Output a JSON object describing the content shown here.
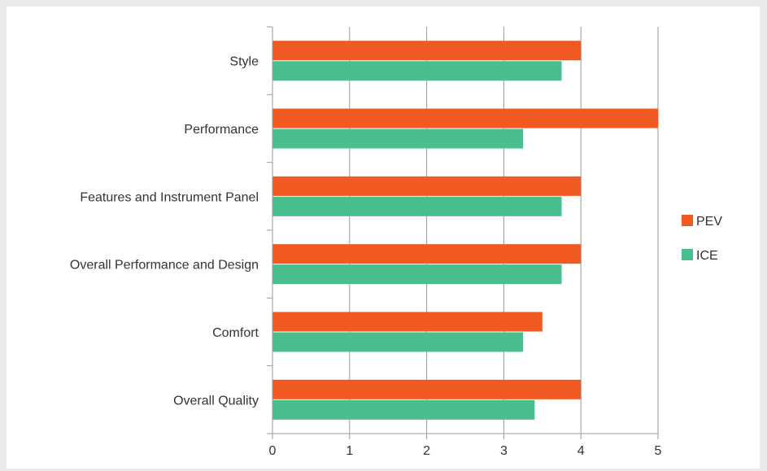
{
  "chart_data": {
    "type": "bar",
    "orientation": "horizontal",
    "title": "",
    "xlabel": "",
    "ylabel": "",
    "categories": [
      "Style",
      "Performance",
      "Features and Instrument Panel",
      "Overall Performance and Design",
      "Comfort",
      "Overall Quality"
    ],
    "series": [
      {
        "name": "PEV",
        "color": "#f15a22",
        "values": [
          4,
          5,
          4,
          4,
          3.5,
          4
        ]
      },
      {
        "name": "ICE",
        "color": "#49bf8f",
        "values": [
          3.75,
          3.25,
          3.75,
          3.75,
          3.25,
          3.4
        ]
      }
    ],
    "xlim": [
      0,
      5
    ],
    "xticks": [
      "0",
      "1",
      "2",
      "3",
      "4",
      "5"
    ],
    "grid": true,
    "legend_position": "right"
  }
}
